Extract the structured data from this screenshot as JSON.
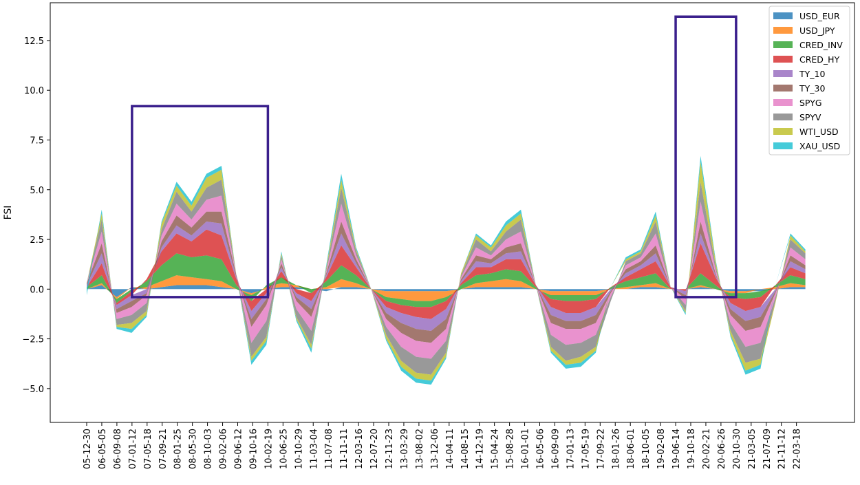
{
  "chart_data": {
    "type": "area",
    "title": "",
    "xlabel": "",
    "ylabel": "FSI",
    "ylim": [
      -6.7,
      14.4
    ],
    "grid": false,
    "legend_placement": "top-right",
    "yticks": [
      -5.0,
      -2.5,
      0.0,
      2.5,
      5.0,
      7.5,
      10.0,
      12.5
    ],
    "ytick_labels": [
      "−5.0",
      "−2.5",
      "0.0",
      "2.5",
      "5.0",
      "7.5",
      "10.0",
      "12.5"
    ],
    "xtick_labels": [
      "05-12-30",
      "06-05-05",
      "06-09-08",
      "07-01-12",
      "07-05-18",
      "07-09-21",
      "08-01-25",
      "08-05-30",
      "08-10-03",
      "09-02-06",
      "09-06-12",
      "09-10-16",
      "10-02-19",
      "10-06-25",
      "10-10-29",
      "11-03-04",
      "11-07-08",
      "11-11-11",
      "12-03-16",
      "12-07-20",
      "12-11-23",
      "13-03-29",
      "13-08-02",
      "13-12-06",
      "14-04-11",
      "14-08-15",
      "14-12-19",
      "15-04-24",
      "15-08-28",
      "16-01-01",
      "16-05-06",
      "16-09-09",
      "17-01-13",
      "17-05-19",
      "17-09-22",
      "18-01-26",
      "18-06-01",
      "18-10-05",
      "19-02-08",
      "19-06-14",
      "19-10-18",
      "20-02-21",
      "20-06-26",
      "20-10-30",
      "21-03-05",
      "21-07-09",
      "21-11-12",
      "22-03-18"
    ],
    "x_range": [
      "05-12-30",
      "22-06-03"
    ],
    "series": [
      {
        "name": "USD_EUR",
        "color": "#1f77b4",
        "values": [
          0.0,
          0.2,
          -0.4,
          0.1,
          0.0,
          0.1,
          0.2,
          0.2,
          0.2,
          0.1,
          0.0,
          -0.2,
          0.0,
          0.1,
          0.1,
          0.0,
          -0.1,
          0.1,
          0.1,
          0.0,
          -0.1,
          -0.1,
          -0.1,
          -0.1,
          -0.1,
          0.0,
          0.1,
          0.1,
          0.1,
          0.1,
          0.0,
          -0.1,
          -0.1,
          -0.1,
          -0.1,
          0.0,
          0.0,
          0.1,
          0.1,
          0.0,
          0.0,
          0.1,
          0.0,
          -0.1,
          -0.1,
          -0.1,
          0.0,
          0.1,
          0.1
        ]
      },
      {
        "name": "USD_JPY",
        "color": "#ff7f0e",
        "values": [
          0.0,
          0.1,
          -0.1,
          0.0,
          0.1,
          0.3,
          0.5,
          0.4,
          0.3,
          0.3,
          0.0,
          -0.1,
          0.1,
          0.2,
          0.1,
          0.0,
          0.1,
          0.4,
          0.2,
          0.0,
          -0.3,
          -0.4,
          -0.5,
          -0.5,
          -0.3,
          0.0,
          0.2,
          0.3,
          0.4,
          0.3,
          0.0,
          -0.2,
          -0.2,
          -0.2,
          -0.2,
          0.0,
          0.1,
          0.1,
          0.2,
          0.0,
          0.0,
          0.1,
          0.0,
          -0.1,
          -0.1,
          0.0,
          0.1,
          0.2,
          0.1
        ]
      },
      {
        "name": "CRED_INV",
        "color": "#2ca02c",
        "values": [
          0.1,
          0.4,
          -0.2,
          -0.1,
          0.3,
          0.8,
          1.1,
          1.0,
          1.2,
          1.1,
          0.2,
          -0.3,
          0.1,
          0.3,
          0.0,
          -0.2,
          0.3,
          0.7,
          0.4,
          0.0,
          -0.2,
          -0.3,
          -0.3,
          -0.3,
          -0.2,
          0.2,
          0.4,
          0.4,
          0.5,
          0.5,
          0.1,
          -0.2,
          -0.3,
          -0.3,
          -0.2,
          0.1,
          0.3,
          0.4,
          0.5,
          0.0,
          0.0,
          0.6,
          0.2,
          -0.2,
          -0.3,
          -0.3,
          0.1,
          0.4,
          0.3
        ]
      },
      {
        "name": "CRED_HY",
        "color": "#d62728",
        "values": [
          0.0,
          0.6,
          -0.1,
          -0.2,
          0.1,
          0.7,
          1.0,
          0.8,
          1.3,
          1.2,
          0.3,
          -0.5,
          -0.2,
          0.3,
          -0.2,
          -0.4,
          0.2,
          1.0,
          0.4,
          0.0,
          -0.3,
          -0.4,
          -0.5,
          -0.6,
          -0.4,
          0.1,
          0.4,
          0.3,
          0.5,
          0.6,
          0.1,
          -0.4,
          -0.6,
          -0.6,
          -0.4,
          0.0,
          0.2,
          0.4,
          0.6,
          0.1,
          -0.1,
          1.5,
          0.4,
          -0.3,
          -0.6,
          -0.5,
          0.0,
          0.4,
          0.3
        ]
      },
      {
        "name": "TY_10",
        "color": "#9467bd",
        "values": [
          0.1,
          0.5,
          -0.2,
          -0.3,
          -0.2,
          0.2,
          0.4,
          0.3,
          0.4,
          0.6,
          0.1,
          -0.4,
          -0.3,
          0.2,
          -0.2,
          -0.4,
          0.1,
          0.6,
          0.2,
          0.0,
          -0.3,
          -0.5,
          -0.6,
          -0.6,
          -0.5,
          0.1,
          0.3,
          0.2,
          0.3,
          0.4,
          0.0,
          -0.4,
          -0.4,
          -0.4,
          -0.4,
          -0.1,
          0.2,
          0.2,
          0.4,
          0.0,
          -0.2,
          0.5,
          0.1,
          -0.3,
          -0.5,
          -0.5,
          -0.1,
          0.3,
          0.2
        ]
      },
      {
        "name": "TY_30",
        "color": "#8c564b",
        "values": [
          0.1,
          0.5,
          -0.2,
          -0.3,
          -0.1,
          0.3,
          0.5,
          0.4,
          0.5,
          0.6,
          0.1,
          -0.4,
          -0.3,
          0.2,
          -0.2,
          -0.4,
          0.1,
          0.6,
          0.2,
          0.0,
          -0.3,
          -0.5,
          -0.6,
          -0.6,
          -0.5,
          0.1,
          0.3,
          0.2,
          0.3,
          0.4,
          0.0,
          -0.4,
          -0.4,
          -0.4,
          -0.4,
          -0.1,
          0.2,
          0.2,
          0.4,
          0.0,
          -0.2,
          0.6,
          0.1,
          -0.3,
          -0.5,
          -0.5,
          -0.1,
          0.3,
          0.2
        ]
      },
      {
        "name": "SPYG",
        "color": "#e377c2",
        "values": [
          0.0,
          0.6,
          -0.3,
          -0.4,
          -0.4,
          0.3,
          0.6,
          0.4,
          0.6,
          0.8,
          0.0,
          -0.8,
          -0.8,
          0.2,
          -0.4,
          -0.7,
          0.1,
          0.9,
          0.2,
          0.0,
          -0.4,
          -0.7,
          -0.8,
          -0.8,
          -0.6,
          0.1,
          0.4,
          0.2,
          0.4,
          0.6,
          0.0,
          -0.6,
          -0.8,
          -0.7,
          -0.6,
          -0.2,
          0.2,
          0.2,
          0.6,
          0.0,
          -0.3,
          1.0,
          0.2,
          -0.4,
          -0.8,
          -0.8,
          -0.2,
          0.4,
          0.3
        ]
      },
      {
        "name": "SPYV",
        "color": "#7f7f7f",
        "values": [
          0.0,
          0.6,
          -0.3,
          -0.4,
          -0.4,
          0.3,
          0.6,
          0.4,
          0.6,
          0.8,
          0.0,
          -0.7,
          -0.8,
          0.2,
          -0.4,
          -0.7,
          0.1,
          0.8,
          0.2,
          0.0,
          -0.4,
          -0.7,
          -0.8,
          -0.8,
          -0.6,
          0.1,
          0.4,
          0.2,
          0.4,
          0.6,
          0.0,
          -0.6,
          -0.8,
          -0.7,
          -0.6,
          -0.2,
          0.2,
          0.2,
          0.6,
          0.0,
          -0.3,
          1.0,
          0.2,
          -0.4,
          -0.8,
          -0.8,
          -0.2,
          0.4,
          0.3
        ]
      },
      {
        "name": "WTI_USD",
        "color": "#bcbd22",
        "values": [
          0.0,
          0.3,
          -0.1,
          -0.3,
          -0.2,
          0.3,
          0.3,
          0.3,
          0.5,
          0.5,
          0.0,
          -0.2,
          -0.2,
          0.1,
          -0.1,
          -0.2,
          0.1,
          0.4,
          0.1,
          0.0,
          -0.2,
          -0.3,
          -0.3,
          -0.3,
          -0.2,
          0.1,
          0.2,
          0.2,
          0.3,
          0.3,
          0.0,
          -0.2,
          -0.2,
          -0.3,
          -0.2,
          0.0,
          0.1,
          0.1,
          0.3,
          0.0,
          -0.1,
          1.0,
          0.2,
          -0.2,
          -0.4,
          -0.3,
          -0.1,
          0.2,
          0.1
        ]
      },
      {
        "name": "XAU_USD",
        "color": "#17becf",
        "values": [
          -0.3,
          0.2,
          -0.1,
          -0.2,
          -0.1,
          0.1,
          0.2,
          0.2,
          0.2,
          0.2,
          0.0,
          -0.2,
          -0.2,
          0.1,
          -0.1,
          -0.2,
          0.1,
          0.3,
          0.1,
          0.0,
          -0.1,
          -0.2,
          -0.2,
          -0.2,
          -0.1,
          0.0,
          0.1,
          0.1,
          0.2,
          0.2,
          0.0,
          -0.1,
          -0.2,
          -0.2,
          -0.1,
          0.0,
          0.1,
          0.1,
          0.2,
          0.0,
          -0.1,
          0.3,
          0.1,
          -0.1,
          -0.2,
          -0.2,
          0.0,
          0.1,
          0.1
        ]
      }
    ],
    "highlight_boxes": [
      {
        "x_start": "07-01-12",
        "x_end": "10-02-19",
        "y_low": -0.4,
        "y_high": 9.2
      },
      {
        "x_start": "19-06-14",
        "x_end": "20-10-30",
        "y_low": -0.4,
        "y_high": 13.7
      }
    ]
  }
}
